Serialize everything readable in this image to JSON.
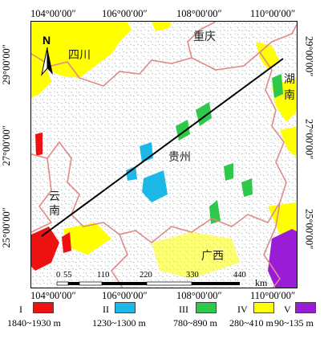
{
  "coords": {
    "top": [
      "104°00′00″",
      "106°00′00″",
      "108°00′00″",
      "110°00′00″"
    ],
    "bottom": [
      "104°00′00″",
      "106°00′00″",
      "108°00′00″",
      "110°00′00″"
    ],
    "left": [
      "29°00′00″",
      "27°00′00″",
      "25°00′00″"
    ],
    "right": [
      "29°00′00″",
      "27°00′00″",
      "25°00′00″"
    ]
  },
  "north_label": "N",
  "regions": {
    "sichuan": "四川",
    "chongqing": "重庆",
    "hunan": "湖南",
    "guizhou": "贵州",
    "yunnan": "云南",
    "guangxi": "广西"
  },
  "scale_bar": {
    "ticks": [
      "0",
      "55",
      "110",
      "220",
      "330",
      "440"
    ],
    "unit": "km"
  },
  "legend": [
    {
      "roman": "I",
      "range": "1840~1930 m",
      "color": "#ee1111"
    },
    {
      "roman": "II",
      "range": "1230~1300 m",
      "color": "#1cb9e8"
    },
    {
      "roman": "III",
      "range": "780~890 m",
      "color": "#2ec84a"
    },
    {
      "roman": "IV",
      "range": "280~410 m",
      "color": "#ffff00"
    },
    {
      "roman": "V",
      "range": "90~135 m",
      "color": "#9a1cd6"
    }
  ],
  "colors": {
    "border": "#e08a88",
    "transect": "#000000",
    "terrain": "#9aa6a6"
  }
}
